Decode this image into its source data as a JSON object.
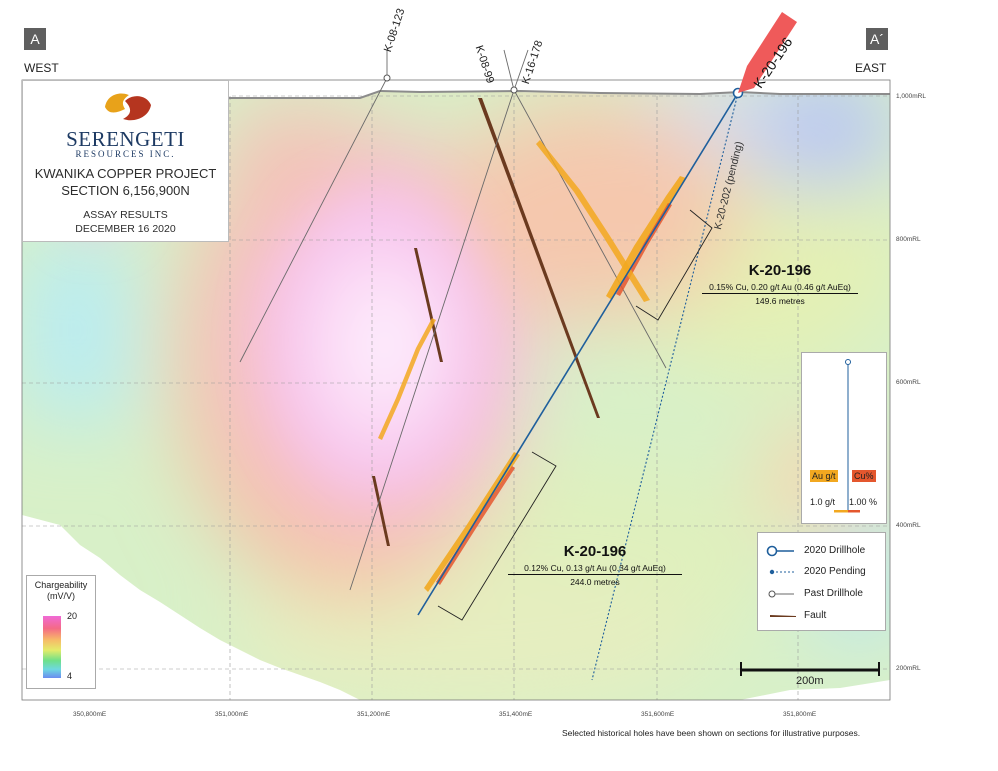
{
  "section_markers": {
    "left": "A",
    "right": "A´"
  },
  "directions": {
    "west": "WEST",
    "east": "EAST"
  },
  "title_block": {
    "company_name": "SERENGETI",
    "company_sub": "RESOURCES INC.",
    "project": "KWANIKA COPPER PROJECT",
    "section": "SECTION 6,156,900N",
    "assay": "ASSAY RESULTS",
    "date": "DECEMBER 16 2020",
    "logo_colors": [
      "#e8a21a",
      "#b5351f"
    ]
  },
  "elevation_labels": [
    "1,000mRL",
    "800mRL",
    "600mRL",
    "400mRL",
    "200mRL"
  ],
  "easting_labels": [
    "350,800mE",
    "351,000mE",
    "351,200mE",
    "351,400mE",
    "351,600mE",
    "351,800mE"
  ],
  "drillholes": {
    "k08_123": "K-08-123",
    "k08_99": "K-08-99",
    "k16_178": "K-16-178",
    "k20_202": "K-20-202 (pending)",
    "k20_196_flag": "K-20-196"
  },
  "intercepts": {
    "upper": {
      "title": "K-20-196",
      "grade": "0.15% Cu, 0.20 g/t Au (0.46 g/t AuEq)",
      "length": "149.6 metres"
    },
    "lower": {
      "title": "K-20-196",
      "grade": "0.12% Cu, 0.13 g/t Au (0.34 g/t AuEq)",
      "length": "244.0 metres"
    }
  },
  "assay_key": {
    "au_label": "Au g/t",
    "cu_label": "Cu%",
    "au_scale": "1.0 g/t",
    "cu_scale": "1.00 %",
    "au_color": "#f2a820",
    "cu_color": "#e4572e"
  },
  "legend": {
    "drillhole_2020": "2020 Drillhole",
    "pending_2020": "2020 Pending",
    "past_drillhole": "Past Drillhole",
    "fault": "Fault"
  },
  "chargeability": {
    "title": "Chargeability",
    "unit": "(mV/V)",
    "max": "20",
    "min": "4"
  },
  "scale_bar": {
    "label": "200m"
  },
  "footnote": "Selected historical holes have been shown on sections for illustrative purposes.",
  "colors": {
    "drillhole_2020": "#1f5f9c",
    "flag": "#ef5a5a",
    "fault": "#6b3a1f"
  }
}
